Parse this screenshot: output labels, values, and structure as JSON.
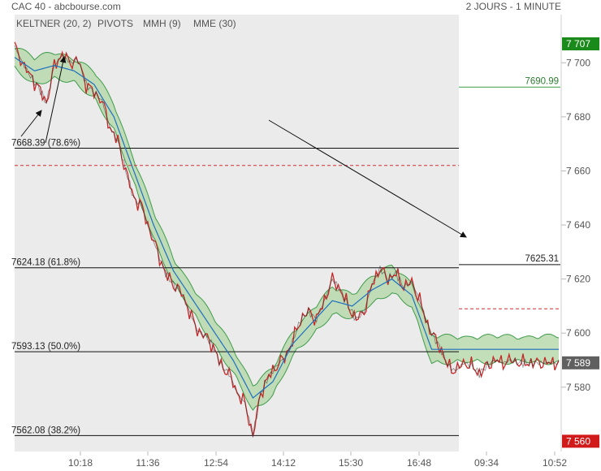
{
  "header": {
    "title": "CAC 40 - abcbourse.com",
    "period": "2 JOURS - 1 MINUTE",
    "legend": [
      {
        "label": "KELTNER (20, 2)",
        "color": "#3f9b4a"
      },
      {
        "label": "PIVOTS",
        "color": "#444444"
      },
      {
        "label": "MMH (9)",
        "color": "#c62828"
      },
      {
        "label": "MME (30)",
        "color": "#1f6fbf"
      }
    ]
  },
  "chart_data": {
    "type": "line",
    "title": "CAC 40",
    "ylim": [
      7554,
      7712
    ],
    "y_ticks": [
      "7 700",
      "7 680",
      "7 660",
      "7 640",
      "7 620",
      "7 600",
      "7 580"
    ],
    "x_ticks": [
      "10:18",
      "11:36",
      "12:54",
      "14:12",
      "15:30",
      "16:48",
      "09:34",
      "10:52"
    ],
    "colors": {
      "price": "#c62828",
      "ema": "#1f6fbf",
      "keltner": "#3f9b4a",
      "fill": "#b7d9ae",
      "session_bg": "#ebebeb"
    },
    "price_markers": [
      {
        "label": "7 707",
        "value": 7707,
        "color": "#1a8a1a"
      },
      {
        "label": "7 589",
        "value": 7589,
        "color": "#606060"
      },
      {
        "label": "7 560",
        "value": 7560,
        "color": "#d11a1a"
      }
    ],
    "fibonacci_levels": [
      {
        "label": "7668.39  (78.6%)",
        "value": 7668.39
      },
      {
        "label": "7624.18  (61.8%)",
        "value": 7624.18
      },
      {
        "label": "7593.13  (50.0%)",
        "value": 7593.13
      },
      {
        "label": "7562.08  (38.2%)",
        "value": 7562.08
      }
    ],
    "pivot_levels": [
      {
        "label": "7690.99",
        "value": 7690.99
      },
      {
        "label": "7625.31",
        "value": 7625.31
      }
    ],
    "red_dashed": [
      7662,
      7609
    ],
    "series": [
      {
        "name": "MMH (9)",
        "x": [
          0,
          4,
          8,
          12,
          16,
          20,
          24,
          28,
          32,
          36,
          40,
          44,
          48,
          52,
          56,
          60,
          64,
          68,
          72,
          76,
          80,
          84,
          88,
          92,
          96,
          100,
          104,
          108,
          112,
          116,
          120,
          124,
          128,
          132,
          136,
          140,
          144,
          148,
          152,
          156,
          160,
          164,
          168,
          172,
          176,
          180,
          184,
          188,
          192,
          196,
          200,
          204,
          208,
          210,
          214,
          218,
          222,
          226,
          230,
          234,
          238,
          242,
          246,
          250,
          254,
          258,
          262,
          266,
          270,
          274
        ],
        "values": [
          7706,
          7700,
          7695,
          7691,
          7685,
          7699,
          7703,
          7700,
          7701,
          7692,
          7689,
          7686,
          7676,
          7671,
          7660,
          7650,
          7647,
          7638,
          7630,
          7622,
          7618,
          7615,
          7608,
          7601,
          7599,
          7595,
          7588,
          7585,
          7578,
          7574,
          7562,
          7578,
          7584,
          7588,
          7591,
          7597,
          7605,
          7608,
          7605,
          7612,
          7620,
          7616,
          7610,
          7605,
          7608,
          7618,
          7624,
          7620,
          7622,
          7617,
          7619,
          7612,
          7603,
          7600,
          7595,
          7588,
          7586,
          7589,
          7588,
          7585,
          7588,
          7590,
          7589,
          7590,
          7589,
          7589,
          7589,
          7589,
          7589,
          7589
        ]
      },
      {
        "name": "MME (30)",
        "x": [
          0,
          10,
          20,
          30,
          40,
          50,
          60,
          70,
          80,
          90,
          100,
          110,
          120,
          130,
          140,
          150,
          160,
          170,
          180,
          190,
          200,
          210
        ],
        "values": [
          7702,
          7697,
          7699,
          7697,
          7692,
          7680,
          7660,
          7640,
          7623,
          7612,
          7601,
          7590,
          7576,
          7582,
          7596,
          7604,
          7612,
          7610,
          7616,
          7620,
          7614,
          7594
        ]
      }
    ]
  }
}
